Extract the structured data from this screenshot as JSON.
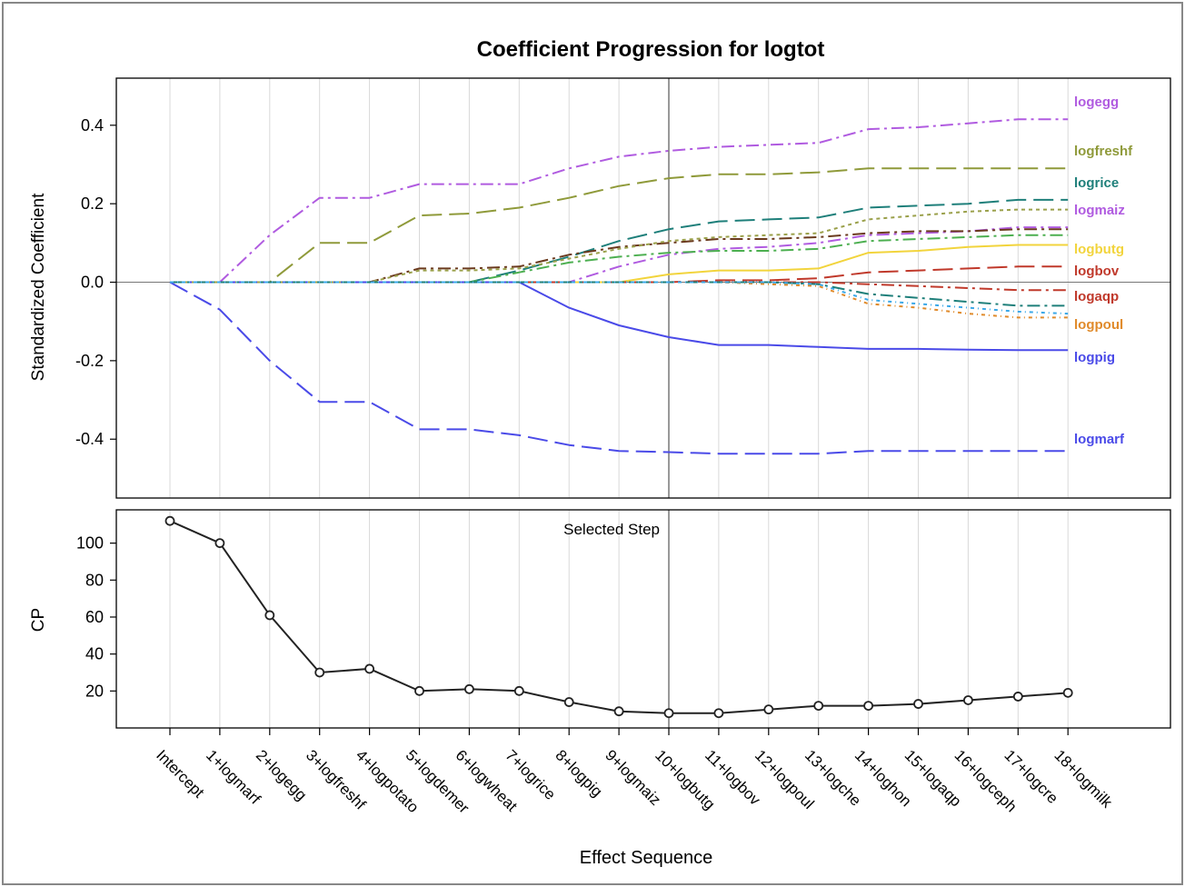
{
  "chart_data": [
    {
      "type": "line",
      "title": "Coefficient Progression for logtot",
      "ylabel": "Standardized Coefficient",
      "ylim": [
        -0.55,
        0.52
      ],
      "yticks": [
        0.4,
        0.2,
        0.0,
        -0.2,
        -0.4
      ],
      "ytick_labels": [
        "0.4",
        "0.2",
        "0.0",
        "-0.2",
        "-0.4"
      ],
      "grid": "vertical",
      "selected_step": "10+logbutg",
      "series": [
        {
          "name": "logegg",
          "color": "#b05be0",
          "dash": "14,5,3,5",
          "values": [
            0,
            0,
            0.12,
            0.215,
            0.215,
            0.25,
            0.25,
            0.25,
            0.29,
            0.32,
            0.335,
            0.345,
            0.35,
            0.355,
            0.39,
            0.395,
            0.405,
            0.415,
            0.415
          ]
        },
        {
          "name": "logfreshf",
          "color": "#8f9a3a",
          "dash": "22,8",
          "values": [
            0,
            0,
            0,
            0.1,
            0.1,
            0.17,
            0.175,
            0.19,
            0.215,
            0.245,
            0.265,
            0.275,
            0.275,
            0.28,
            0.29,
            0.29,
            0.29,
            0.29,
            0.29
          ]
        },
        {
          "name": "logrice",
          "color": "#1e7f7a",
          "dash": "22,8",
          "values": [
            0,
            0,
            0,
            0,
            0,
            0,
            0,
            0.03,
            0.065,
            0.105,
            0.135,
            0.155,
            0.16,
            0.165,
            0.19,
            0.195,
            0.2,
            0.21,
            0.21
          ]
        },
        {
          "name": "logmaiz",
          "color": "#b05be0",
          "dash": "14,5,3,5",
          "values": [
            0,
            0,
            0,
            0,
            0,
            0,
            0,
            0,
            0,
            0.04,
            0.07,
            0.085,
            0.09,
            0.1,
            0.12,
            0.125,
            0.13,
            0.14,
            0.14
          ]
        },
        {
          "name": "logbutg",
          "color": "#f2d43c",
          "dash": "",
          "values": [
            0,
            0,
            0,
            0,
            0,
            0,
            0,
            0,
            0,
            0,
            0.02,
            0.03,
            0.03,
            0.035,
            0.075,
            0.08,
            0.09,
            0.095,
            0.095
          ]
        },
        {
          "name": "logbov",
          "color": "#c0392b",
          "dash": "22,8",
          "values": [
            0,
            0,
            0,
            0,
            0,
            0,
            0,
            0,
            0,
            0,
            0,
            0.005,
            0.005,
            0.01,
            0.025,
            0.03,
            0.035,
            0.04,
            0.04
          ]
        },
        {
          "name": "logaqp",
          "color": "#c0392b",
          "dash": "14,5,3,5",
          "values": [
            0,
            0,
            0,
            0,
            0,
            0,
            0,
            0,
            0,
            0,
            0,
            0,
            0,
            0,
            -0.005,
            -0.01,
            -0.015,
            -0.02,
            -0.02
          ]
        },
        {
          "name": "logpoul",
          "color": "#e08a2a",
          "dash": "4,4,1,4",
          "values": [
            0,
            0,
            0,
            0,
            0,
            0,
            0,
            0,
            0,
            0,
            0,
            0,
            -0.005,
            -0.01,
            -0.055,
            -0.065,
            -0.08,
            -0.09,
            -0.09
          ]
        },
        {
          "name": "logpig",
          "color": "#4a4ae8",
          "dash": "",
          "values": [
            0,
            0,
            0,
            0,
            0,
            0,
            0,
            0,
            -0.065,
            -0.11,
            -0.14,
            -0.16,
            -0.16,
            -0.165,
            -0.17,
            -0.17,
            -0.172,
            -0.173,
            -0.173
          ]
        },
        {
          "name": "logmarf",
          "color": "#4a4ae8",
          "dash": "22,8",
          "values": [
            0,
            -0.07,
            -0.2,
            -0.305,
            -0.305,
            -0.375,
            -0.375,
            -0.39,
            -0.415,
            -0.43,
            -0.433,
            -0.437,
            -0.437,
            -0.437,
            -0.43,
            -0.43,
            -0.43,
            -0.43,
            -0.43
          ]
        },
        {
          "color": "#6b3a1e",
          "dash": "14,5,3,5",
          "values": [
            0,
            0,
            0,
            0,
            0,
            0.035,
            0.035,
            0.04,
            0.07,
            0.09,
            0.1,
            0.11,
            0.11,
            0.115,
            0.125,
            0.13,
            0.13,
            0.135,
            0.135
          ]
        },
        {
          "color": "#9aa04a",
          "dash": "4,4",
          "values": [
            0,
            0,
            0,
            0,
            0,
            0.03,
            0.03,
            0.035,
            0.06,
            0.085,
            0.105,
            0.115,
            0.12,
            0.125,
            0.16,
            0.17,
            0.18,
            0.185,
            0.185
          ]
        },
        {
          "color": "#4caf50",
          "dash": "14,5,3,5",
          "values": [
            0,
            0,
            0,
            0,
            0,
            0,
            0,
            0.025,
            0.05,
            0.065,
            0.075,
            0.08,
            0.08,
            0.085,
            0.105,
            0.11,
            0.115,
            0.12,
            0.12
          ]
        },
        {
          "color": "#1e7f7a",
          "dash": "14,5,3,5",
          "values": [
            0,
            0,
            0,
            0,
            0,
            0,
            0,
            0,
            0,
            0,
            0,
            0,
            0,
            -0.005,
            -0.03,
            -0.04,
            -0.05,
            -0.06,
            -0.06
          ]
        },
        {
          "color": "#3aa8e8",
          "dash": "4,4,1,4",
          "values": [
            0,
            0,
            0,
            0,
            0,
            0,
            0,
            0,
            0,
            0,
            0,
            0,
            0,
            -0.005,
            -0.045,
            -0.055,
            -0.065,
            -0.075,
            -0.08
          ]
        }
      ]
    },
    {
      "type": "line",
      "ylabel": "CP",
      "xlabel": "Effect Sequence",
      "ylim": [
        0,
        118
      ],
      "yticks": [
        100,
        80,
        60,
        40,
        20
      ],
      "ytick_labels": [
        "100",
        "80",
        "60",
        "40",
        "20"
      ],
      "annotation": "Selected Step",
      "categories": [
        "Intercept",
        "1+logmarf",
        "2+logegg",
        "3+logfreshf",
        "4+logpotato",
        "5+logdemer",
        "6+logwheat",
        "7+logrice",
        "8+logpig",
        "9+logmaiz",
        "10+logbutg",
        "11+logbov",
        "12+logpoul",
        "13+logche",
        "14+loghon",
        "15+logaqp",
        "16+logceph",
        "17+logcre",
        "18+logmilk"
      ],
      "series": [
        {
          "color": "#222222",
          "values": [
            112,
            100,
            61,
            30,
            32,
            20,
            21,
            20,
            14,
            9,
            8,
            8,
            10,
            12,
            12,
            13,
            15,
            17,
            19
          ]
        }
      ]
    }
  ]
}
